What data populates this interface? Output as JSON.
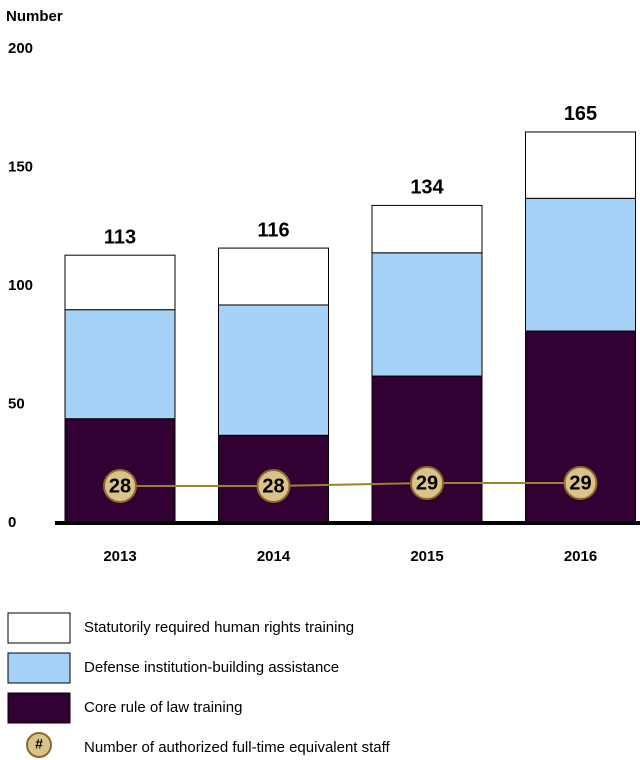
{
  "chart_data": {
    "type": "stacked_bar",
    "y_axis_label": "Number",
    "categories": [
      "2013",
      "2014",
      "2015",
      "2016"
    ],
    "ylim": [
      0,
      200
    ],
    "yticks": [
      0,
      50,
      100,
      150,
      200
    ],
    "series": [
      {
        "name": "Core rule of law training",
        "color": "#330033",
        "values": [
          44,
          37,
          62,
          81
        ]
      },
      {
        "name": "Defense institution-building assistance",
        "color": "#a6d2f7",
        "values": [
          46,
          55,
          52,
          56
        ]
      },
      {
        "name": "Statutorily required human rights training",
        "color": "#ffffff",
        "values": [
          23,
          24,
          20,
          28
        ]
      }
    ],
    "totals": [
      113,
      116,
      134,
      165
    ],
    "staff": {
      "name": "Number of authorized full-time equivalent staff",
      "symbol": "#",
      "color": "#d9c38a",
      "line_color": "#a07f2e",
      "values": [
        28,
        28,
        29,
        29
      ]
    }
  }
}
